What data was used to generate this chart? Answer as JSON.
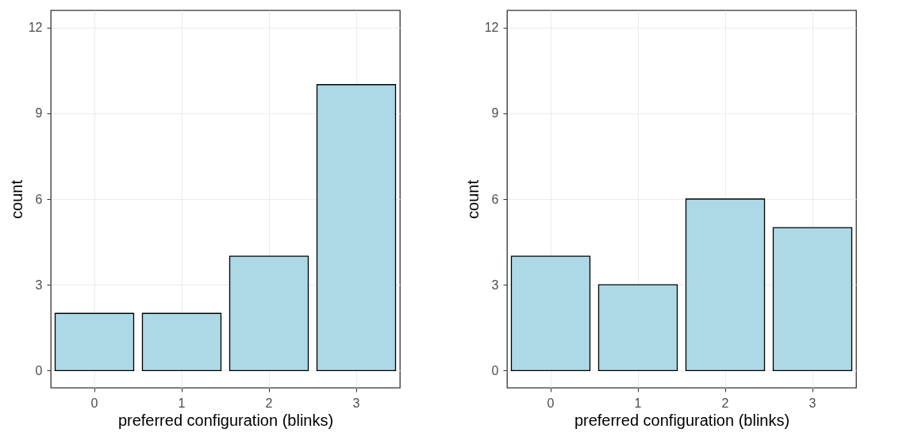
{
  "chart_data": [
    {
      "type": "bar",
      "xlabel": "preferred configuration (blinks)",
      "ylabel": "count",
      "categories": [
        "0",
        "1",
        "2",
        "3"
      ],
      "values": [
        2,
        2,
        4,
        10
      ],
      "color": "#add8e6",
      "ylim": [
        -0.6,
        12.6
      ],
      "yticks": [
        0,
        3,
        6,
        9,
        12
      ],
      "grid": true
    },
    {
      "type": "bar",
      "xlabel": "preferred configuration (blinks)",
      "ylabel": "count",
      "categories": [
        "0",
        "1",
        "2",
        "3"
      ],
      "values": [
        4,
        3,
        6,
        5
      ],
      "color": "#add8e6",
      "ylim": [
        -0.6,
        12.6
      ],
      "yticks": [
        0,
        3,
        6,
        9,
        12
      ],
      "grid": true
    }
  ]
}
